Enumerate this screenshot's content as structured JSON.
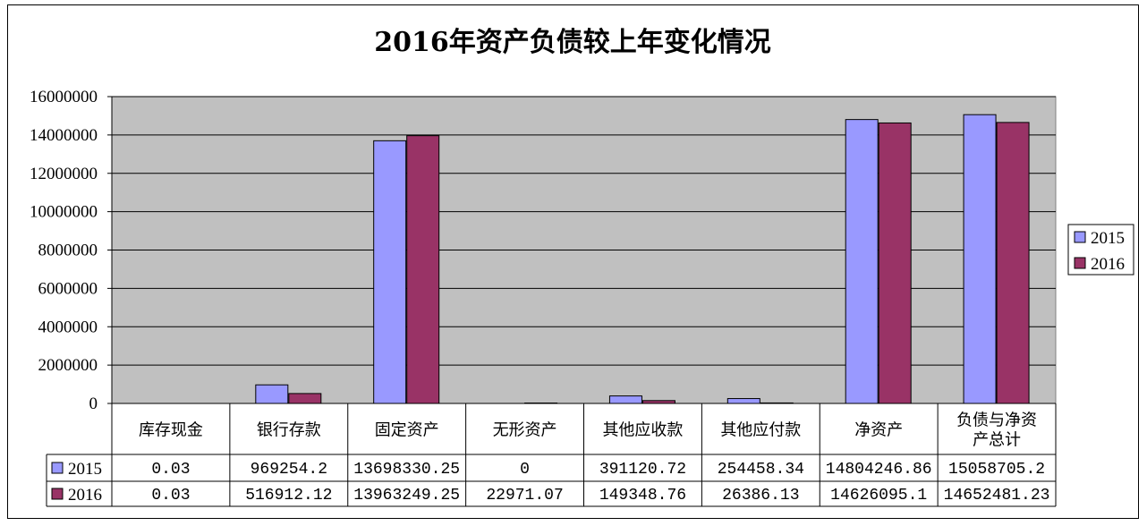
{
  "chart_data": {
    "type": "bar",
    "title": "2016年资产负债较上年变化情况",
    "categories": [
      "库存现金",
      "银行存款",
      "固定资产",
      "无形资产",
      "其他应收款",
      "其他应付款",
      "净资产",
      "负债与净资产总计"
    ],
    "category_lines": [
      [
        "库存现金"
      ],
      [
        "银行存款"
      ],
      [
        "固定资产"
      ],
      [
        "无形资产"
      ],
      [
        "其他应收款"
      ],
      [
        "其他应付款"
      ],
      [
        "净资产"
      ],
      [
        "负债与净资",
        "产总计"
      ]
    ],
    "series": [
      {
        "name": "2015",
        "color": "#9999ff",
        "values": [
          0.03,
          969254.2,
          13698330.25,
          0,
          391120.72,
          254458.34,
          14804246.86,
          15058705.2
        ],
        "labels": [
          "0.03",
          "969254.2",
          "13698330.25",
          "0",
          "391120.72",
          "254458.34",
          "14804246.86",
          "15058705.2"
        ]
      },
      {
        "name": "2016",
        "color": "#993366",
        "values": [
          0.03,
          516912.12,
          13963249.25,
          22971.07,
          149348.76,
          26386.13,
          14626095.1,
          14652481.23
        ],
        "labels": [
          "0.03",
          "516912.12",
          "13963249.25",
          "22971.07",
          "149348.76",
          "26386.13",
          "14626095.1",
          "14652481.23"
        ]
      }
    ],
    "ylim": [
      0,
      16000000
    ],
    "yticks": [
      "0",
      "2000000",
      "4000000",
      "6000000",
      "8000000",
      "10000000",
      "12000000",
      "14000000",
      "16000000"
    ],
    "grid": true,
    "legend_position": "right",
    "data_table": true,
    "plot_background": "#c0c0c0"
  }
}
